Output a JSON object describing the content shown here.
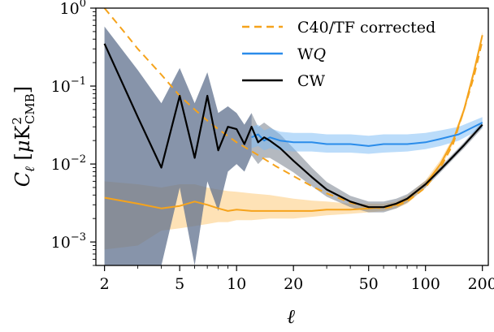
{
  "chart_data": {
    "type": "line",
    "title": "",
    "xlabel": "ℓ",
    "ylabel": "C_ℓ [μK²_CMB]",
    "xscale": "log",
    "yscale": "log",
    "xlim": [
      1.8,
      215
    ],
    "ylim": [
      0.0005,
      1.0
    ],
    "grid": false,
    "legend_position": "top-right",
    "x_tick_values": [
      2,
      5,
      10,
      20,
      50,
      100,
      200
    ],
    "x_tick_labels": [
      "2",
      "5",
      "10",
      "20",
      "50",
      "100",
      "200"
    ],
    "y_tick_values": [
      0.001,
      0.01,
      0.1,
      1.0
    ],
    "y_tick_labels": [
      {
        "base": "10",
        "exp": "−3"
      },
      {
        "base": "10",
        "exp": "−2"
      },
      {
        "base": "10",
        "exp": "−1"
      },
      {
        "base": "10",
        "exp": "0"
      }
    ],
    "ylabel_parts": {
      "C": "C",
      "sub_l": "ℓ",
      "open": "[",
      "mu": "μ",
      "K": "K",
      "sup2": "2",
      "sub": "CMB",
      "close": "]"
    },
    "series": [
      {
        "name": "C40/TF corrected",
        "color": "#f5a31c",
        "style": "dashed",
        "x": [
          2,
          2.5,
          3,
          4,
          5,
          6,
          7,
          8,
          10,
          13,
          16,
          20,
          25,
          30,
          40,
          50,
          60,
          70,
          80,
          100,
          120,
          140,
          160,
          180,
          200
        ],
        "y": [
          1.0,
          0.52,
          0.3,
          0.14,
          0.075,
          0.05,
          0.036,
          0.028,
          0.019,
          0.013,
          0.0095,
          0.007,
          0.0052,
          0.0042,
          0.0032,
          0.0028,
          0.0027,
          0.0029,
          0.0033,
          0.005,
          0.009,
          0.018,
          0.05,
          0.13,
          0.38
        ]
      },
      {
        "name": "",
        "color": "#f5a31c",
        "style": "solid",
        "x": [
          2,
          3,
          4,
          5,
          6,
          7,
          8,
          9,
          10,
          12,
          15,
          20,
          25,
          30,
          40,
          50,
          60,
          70,
          80,
          100,
          120,
          140,
          160,
          180,
          200
        ],
        "y": [
          0.0037,
          0.0031,
          0.0027,
          0.0029,
          0.0033,
          0.003,
          0.0027,
          0.0025,
          0.0026,
          0.0025,
          0.0025,
          0.0025,
          0.0025,
          0.0026,
          0.0026,
          0.0027,
          0.0028,
          0.003,
          0.0035,
          0.0055,
          0.01,
          0.02,
          0.05,
          0.15,
          0.45
        ],
        "band_low": [
          0.0008,
          0.0009,
          0.0014,
          0.0015,
          0.0016,
          0.0017,
          0.0018,
          0.0018,
          0.0019,
          0.0019,
          0.002,
          0.002,
          0.0021,
          0.0022,
          0.0023,
          0.0024,
          0.0025,
          0.0027,
          0.0031,
          0.0049,
          0.0088,
          0.018,
          0.045,
          0.13,
          0.4
        ],
        "band_high": [
          0.006,
          0.0055,
          0.005,
          0.0055,
          0.0055,
          0.005,
          0.0047,
          0.0045,
          0.0044,
          0.0042,
          0.004,
          0.0036,
          0.0034,
          0.0033,
          0.0031,
          0.0031,
          0.0031,
          0.0033,
          0.0039,
          0.0062,
          0.0112,
          0.022,
          0.055,
          0.17,
          0.5
        ]
      },
      {
        "name": "WQ",
        "color": "#2a8cea",
        "style": "solid",
        "x": [
          12,
          13,
          14,
          15,
          17,
          20,
          25,
          30,
          40,
          50,
          60,
          80,
          100,
          120,
          150,
          200
        ],
        "y": [
          0.022,
          0.024,
          0.02,
          0.022,
          0.02,
          0.019,
          0.019,
          0.018,
          0.018,
          0.017,
          0.018,
          0.018,
          0.019,
          0.021,
          0.024,
          0.034
        ],
        "band_low": [
          0.016,
          0.017,
          0.015,
          0.016,
          0.015,
          0.0145,
          0.0145,
          0.014,
          0.014,
          0.0135,
          0.014,
          0.0145,
          0.0155,
          0.017,
          0.02,
          0.029
        ],
        "band_high": [
          0.03,
          0.032,
          0.027,
          0.029,
          0.026,
          0.025,
          0.025,
          0.024,
          0.024,
          0.023,
          0.024,
          0.024,
          0.025,
          0.027,
          0.03,
          0.04
        ]
      },
      {
        "name": "CW",
        "color": "#000000",
        "style": "solid",
        "x": [
          2,
          3,
          4,
          5,
          6,
          7,
          8,
          9,
          10,
          11,
          12,
          13,
          14,
          15,
          17,
          20,
          25,
          30,
          40,
          50,
          60,
          70,
          80,
          100,
          120,
          140,
          160,
          200
        ],
        "y": [
          0.35,
          0.04,
          0.009,
          0.075,
          0.012,
          0.075,
          0.015,
          0.03,
          0.028,
          0.018,
          0.03,
          0.019,
          0.022,
          0.02,
          0.016,
          0.011,
          0.0068,
          0.0047,
          0.0033,
          0.0028,
          0.0028,
          0.0031,
          0.0036,
          0.0055,
          0.0085,
          0.0125,
          0.0175,
          0.032
        ],
        "band_low": [
          0.0005,
          0.0005,
          0.0005,
          0.005,
          0.0005,
          0.006,
          0.0025,
          0.008,
          0.01,
          0.008,
          0.013,
          0.01,
          0.012,
          0.012,
          0.01,
          0.0078,
          0.0052,
          0.0038,
          0.0028,
          0.0024,
          0.0024,
          0.0027,
          0.0032,
          0.005,
          0.0078,
          0.0115,
          0.016,
          0.029
        ],
        "band_high": [
          0.58,
          0.16,
          0.06,
          0.17,
          0.06,
          0.15,
          0.045,
          0.055,
          0.045,
          0.032,
          0.045,
          0.03,
          0.034,
          0.03,
          0.024,
          0.016,
          0.009,
          0.0059,
          0.0039,
          0.0033,
          0.0033,
          0.0036,
          0.0041,
          0.0061,
          0.0093,
          0.0136,
          0.019,
          0.035
        ]
      }
    ],
    "legend": [
      {
        "label": "C40/TF corrected",
        "color": "#f5a31c",
        "style": "dashed"
      },
      {
        "label_main": "W",
        "label_italic": "Q",
        "color": "#2a8cea",
        "style": "solid"
      },
      {
        "label": "CW",
        "color": "#000000",
        "style": "solid"
      }
    ]
  }
}
